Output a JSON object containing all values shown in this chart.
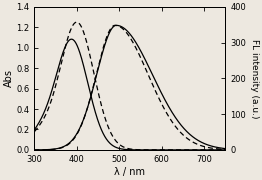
{
  "xlim": [
    300,
    750
  ],
  "ylim_left": [
    0,
    1.4
  ],
  "ylim_right": [
    0,
    400
  ],
  "yticks_left": [
    0.0,
    0.2,
    0.4,
    0.6,
    0.8,
    1.0,
    1.2,
    1.4
  ],
  "yticks_right": [
    0,
    100,
    200,
    300,
    400
  ],
  "xticks": [
    300,
    400,
    500,
    600,
    700
  ],
  "xlabel": "λ / nm",
  "ylabel_left": "Abs",
  "ylabel_right": "FL intensity (a.u.)",
  "background": "#ede8e0",
  "figsize": [
    2.62,
    1.8
  ],
  "dpi": 100,
  "solid_abs_peak": 388,
  "solid_abs_amp": 1.08,
  "solid_abs_sigma": 38,
  "solid_fl_peak": 493,
  "solid_fl_amp_abs_units": 1.22,
  "solid_fl_sigma_l": 46,
  "solid_fl_sigma_r": 85,
  "dashed_abs_peak": 400,
  "dashed_abs_amp": 1.25,
  "dashed_abs_sigma": 40,
  "dashed_fl_peak": 490,
  "dashed_fl_amp_abs_units": 1.22,
  "dashed_fl_sigma_l": 44,
  "dashed_fl_sigma_r": 78
}
